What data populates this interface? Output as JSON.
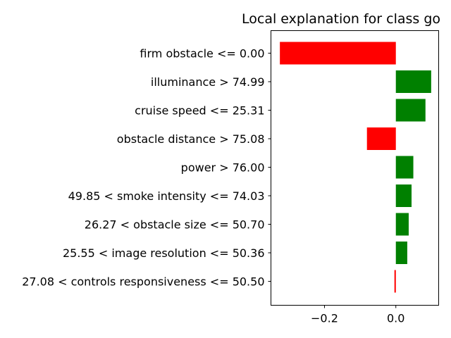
{
  "chart_data": {
    "type": "bar",
    "orientation": "horizontal",
    "title": "Local explanation for class go",
    "xlabel": "",
    "ylabel": "",
    "categories": [
      "firm obstacle <= 0.00",
      "illuminance > 74.99",
      "cruise speed <= 25.31",
      "obstacle distance > 75.08",
      "power > 76.00",
      "49.85 < smoke intensity <= 74.03",
      "26.27 < obstacle size <= 50.70",
      "25.55 < image resolution <= 50.36",
      "27.08 < controls responsiveness <= 50.50"
    ],
    "values": [
      -0.325,
      0.099,
      0.083,
      -0.081,
      0.049,
      0.044,
      0.036,
      0.032,
      -0.004
    ],
    "xlim": [
      -0.35,
      0.12
    ],
    "xticks": [
      -0.2,
      0.0
    ],
    "xtick_labels": [
      "−0.2",
      "0.0"
    ],
    "positive_color": "#008000",
    "negative_color": "#ff0000",
    "grid": false
  }
}
